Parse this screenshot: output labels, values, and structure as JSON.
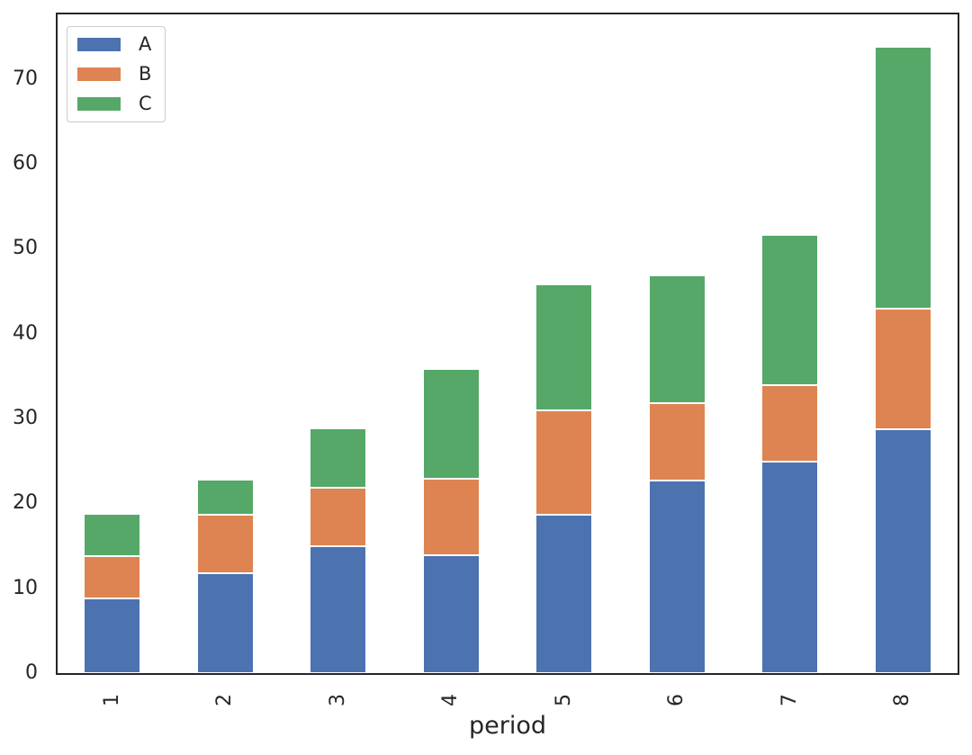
{
  "chart_data": {
    "type": "bar",
    "stacked": true,
    "title": "",
    "xlabel": "period",
    "ylabel": "",
    "categories": [
      "1",
      "2",
      "3",
      "4",
      "5",
      "6",
      "7",
      "8"
    ],
    "series": [
      {
        "name": "A",
        "color": "#4c72b0",
        "values": [
          8.8,
          11.8,
          14.9,
          13.9,
          18.7,
          22.7,
          24.9,
          28.7
        ]
      },
      {
        "name": "B",
        "color": "#dd8452",
        "values": [
          5.0,
          6.9,
          6.9,
          9.0,
          12.2,
          9.1,
          9.0,
          14.2
        ]
      },
      {
        "name": "C",
        "color": "#55a868",
        "values": [
          5.0,
          4.1,
          7.0,
          12.9,
          14.9,
          15.0,
          17.7,
          30.9
        ]
      }
    ],
    "stacked_totals": [
      18.8,
      22.8,
      28.8,
      35.8,
      45.8,
      46.8,
      51.6,
      73.8
    ],
    "ylim": [
      0,
      77.8
    ],
    "yticks": [
      "0",
      "10",
      "20",
      "30",
      "40",
      "50",
      "60",
      "70"
    ],
    "grid": false,
    "legend_position": "upper left",
    "legend_labels": [
      "A",
      "B",
      "C"
    ],
    "bar_width_fraction": 0.5,
    "xtick_rotation": 90
  },
  "style": {
    "background": "#ffffff",
    "spine_color": "#262626",
    "text_color": "#262626",
    "legend_border_color": "#cccccc",
    "segment_edge_color": "#ffffff"
  }
}
